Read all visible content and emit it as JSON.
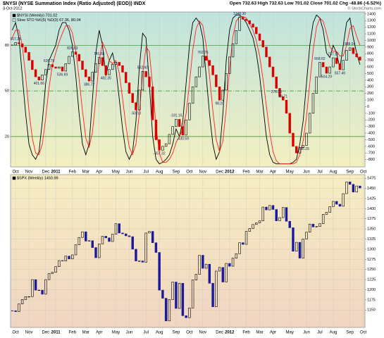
{
  "header": {
    "title": "$NYSI (NYSE Summation Index (Ratio Adjusted) (EOD)) INDX",
    "date": "3-Oct-2012",
    "quote": "Open 732.63  High 732.63  Low 701.02  Close 701.02  Chg -48.86 (-6.52%)",
    "credit": "© StockCharts.com"
  },
  "chart_data": [
    {
      "type": "candlestick",
      "legend": [
        "$NYSI (Weekly) 701.02",
        "Slow STO %K(5) %D(3) 67.36, 80.04"
      ],
      "up_color": "#000000",
      "down_color": "#dd0000",
      "values": [
        930,
        967.28,
        950,
        900,
        820,
        700,
        560,
        450,
        401.66,
        480,
        560,
        635.79,
        600,
        580,
        600,
        536.69,
        650,
        760,
        826.83,
        790,
        690,
        560,
        450,
        386.72,
        520,
        650,
        741.56,
        620,
        482.35,
        560,
        640,
        670,
        620,
        520,
        360,
        200,
        60,
        -50.1,
        250,
        532.6,
        450,
        300,
        -200,
        -500,
        -657.32,
        -600,
        -560,
        -420,
        -300,
        -191.15,
        -300,
        -430.59,
        -200,
        50,
        300,
        450,
        600,
        762.76,
        700,
        620,
        480,
        300,
        98.2,
        250,
        500,
        750,
        950,
        1150,
        1348.3,
        1320,
        1300,
        1250,
        1200,
        1100,
        1000,
        900,
        750,
        600,
        450,
        276.2,
        150,
        98.71,
        -100,
        -400,
        -600,
        -700,
        -620,
        -586.29,
        -400,
        -100,
        200,
        450,
        668.62,
        600,
        504.29,
        600,
        737.17,
        650,
        557.49,
        700,
        850,
        888.54,
        800,
        750,
        701.02
      ],
      "value_labels": [
        null,
        "967.28",
        null,
        null,
        null,
        null,
        null,
        null,
        "401.66",
        null,
        null,
        "635.79",
        null,
        null,
        null,
        "536.69",
        null,
        null,
        "826.83",
        null,
        null,
        null,
        null,
        "386.72",
        null,
        null,
        "741.56",
        null,
        "482.35",
        null,
        null,
        null,
        null,
        null,
        null,
        null,
        null,
        "-50.10",
        null,
        "532.60",
        null,
        null,
        null,
        null,
        "-657.32",
        null,
        null,
        null,
        null,
        "-191.15",
        null,
        "-430.59",
        null,
        null,
        null,
        null,
        null,
        "762.76",
        null,
        null,
        null,
        null,
        "98.20",
        null,
        null,
        null,
        null,
        null,
        "1348.30",
        null,
        null,
        null,
        null,
        null,
        null,
        null,
        null,
        null,
        null,
        "276.20",
        null,
        "98.71",
        null,
        null,
        null,
        null,
        null,
        "-586.29",
        null,
        null,
        null,
        null,
        "668.62",
        null,
        "504.29",
        null,
        "737.17",
        null,
        "557.49",
        null,
        null,
        "888.54",
        null,
        null,
        null
      ],
      "series": [
        {
          "color": "#000000",
          "axis": "y2",
          "values": [
            90,
            95,
            85,
            60,
            35,
            15,
            8,
            5,
            10,
            30,
            55,
            70,
            75,
            80,
            90,
            95,
            95,
            90,
            80,
            60,
            35,
            15,
            8,
            15,
            45,
            75,
            90,
            80,
            60,
            70,
            75,
            65,
            45,
            25,
            10,
            5,
            10,
            30,
            65,
            88,
            85,
            55,
            20,
            5,
            2,
            3,
            5,
            8,
            15,
            25,
            20,
            30,
            55,
            80,
            95,
            98,
            95,
            85,
            60,
            35,
            15,
            5,
            10,
            35,
            70,
            90,
            98,
            100,
            100,
            98,
            95,
            90,
            85,
            75,
            60,
            40,
            20,
            8,
            3,
            2,
            2,
            2,
            2,
            2,
            3,
            5,
            15,
            30,
            55,
            80,
            95,
            100,
            98,
            90,
            75,
            72,
            80,
            75,
            65,
            80,
            95,
            98,
            85,
            75,
            67.36
          ]
        },
        {
          "color": "#ff2020",
          "axis": "y2",
          "values": [
            85,
            90,
            90,
            80,
            60,
            37,
            19,
            9,
            8,
            15,
            32,
            52,
            67,
            75,
            82,
            88,
            93,
            93,
            88,
            77,
            58,
            37,
            19,
            13,
            23,
            45,
            70,
            82,
            77,
            70,
            68,
            70,
            62,
            45,
            27,
            13,
            8,
            15,
            35,
            61,
            79,
            76,
            53,
            27,
            9,
            3,
            3,
            5,
            9,
            16,
            20,
            25,
            35,
            55,
            77,
            91,
            96,
            93,
            80,
            60,
            37,
            18,
            10,
            17,
            38,
            65,
            86,
            96,
            99,
            99,
            98,
            94,
            90,
            83,
            73,
            58,
            40,
            23,
            10,
            4,
            2,
            2,
            2,
            2,
            2,
            3,
            8,
            17,
            33,
            55,
            77,
            92,
            98,
            96,
            88,
            79,
            76,
            76,
            73,
            73,
            80,
            91,
            93,
            86,
            80.04
          ]
        }
      ],
      "xlim": [
        -0.5,
        105.5
      ],
      "xticks": [
        {
          "value": 1,
          "label": "Oct"
        },
        {
          "value": 5,
          "label": "Nov"
        },
        {
          "value": 10,
          "label": "Dec"
        },
        {
          "value": 13,
          "label": "2011"
        },
        {
          "value": 18,
          "label": "Feb"
        },
        {
          "value": 22,
          "label": "Mar"
        },
        {
          "value": 26,
          "label": "Apr"
        },
        {
          "value": 31,
          "label": "May"
        },
        {
          "value": 35,
          "label": "Jun"
        },
        {
          "value": 40,
          "label": "Jul"
        },
        {
          "value": 44,
          "label": "Aug"
        },
        {
          "value": 49,
          "label": "Sep"
        },
        {
          "value": 53,
          "label": "Oct"
        },
        {
          "value": 57,
          "label": "Nov"
        },
        {
          "value": 62,
          "label": "Dec"
        },
        {
          "value": 65,
          "label": "2012"
        },
        {
          "value": 70,
          "label": "Feb"
        },
        {
          "value": 74,
          "label": "Mar"
        },
        {
          "value": 78,
          "label": "Apr"
        },
        {
          "value": 83,
          "label": "May"
        },
        {
          "value": 88,
          "label": "Jun"
        },
        {
          "value": 92,
          "label": "Jul"
        },
        {
          "value": 96,
          "label": "Aug"
        },
        {
          "value": 101,
          "label": "Sep"
        },
        {
          "value": 105,
          "label": "Oct"
        }
      ],
      "ylim": [
        -910,
        1430
      ],
      "yticks": [
        1400,
        1300,
        1200,
        1100,
        1000,
        900,
        800,
        700,
        600,
        500,
        400,
        300,
        200,
        100,
        0,
        -100,
        -200,
        -300,
        -400,
        -500,
        -600,
        -700,
        -800
      ],
      "y2lim": [
        0,
        102
      ],
      "y2ticks": [
        20,
        50,
        80
      ],
      "grid": false,
      "background": [
        "#bfe4dd",
        "#f3efc0"
      ]
    },
    {
      "type": "candlestick",
      "legend": [
        "$SPX (Weekly) 1450.99"
      ],
      "up_color": "#000000",
      "down_color": "#1a1a9a",
      "values": [
        1148,
        1146,
        1165,
        1176,
        1183,
        1183,
        1225,
        1199,
        1199,
        1189,
        1225,
        1240,
        1243,
        1257,
        1272,
        1271,
        1283,
        1276,
        1286,
        1311,
        1329,
        1343,
        1320,
        1321,
        1304,
        1279,
        1313,
        1332,
        1328,
        1319,
        1337,
        1363,
        1340,
        1338,
        1333,
        1331,
        1300,
        1271,
        1271,
        1268,
        1340,
        1344,
        1316,
        1292,
        1199,
        1179,
        1123,
        1176,
        1219,
        1154,
        1216,
        1136,
        1131,
        1155,
        1224,
        1238,
        1285,
        1253,
        1263,
        1216,
        1158,
        1246,
        1255,
        1219,
        1265,
        1258,
        1278,
        1289,
        1316,
        1312,
        1344,
        1351,
        1361,
        1365,
        1370,
        1404,
        1397,
        1408,
        1398,
        1370,
        1378,
        1403,
        1369,
        1353,
        1295,
        1317,
        1278,
        1325,
        1342,
        1362,
        1355,
        1356,
        1363,
        1386,
        1391,
        1405,
        1418,
        1411,
        1406,
        1437,
        1466,
        1460,
        1441,
        1456,
        1450.99
      ],
      "xlim": [
        -0.5,
        105.5
      ],
      "xticks": [
        {
          "value": 1,
          "label": "Oct"
        },
        {
          "value": 5,
          "label": "Nov"
        },
        {
          "value": 10,
          "label": "Dec"
        },
        {
          "value": 13,
          "label": "2011"
        },
        {
          "value": 18,
          "label": "Feb"
        },
        {
          "value": 22,
          "label": "Mar"
        },
        {
          "value": 26,
          "label": "Apr"
        },
        {
          "value": 31,
          "label": "May"
        },
        {
          "value": 35,
          "label": "Jun"
        },
        {
          "value": 40,
          "label": "Jul"
        },
        {
          "value": 44,
          "label": "Aug"
        },
        {
          "value": 49,
          "label": "Sep"
        },
        {
          "value": 53,
          "label": "Oct"
        },
        {
          "value": 57,
          "label": "Nov"
        },
        {
          "value": 62,
          "label": "Dec"
        },
        {
          "value": 65,
          "label": "2012"
        },
        {
          "value": 70,
          "label": "Feb"
        },
        {
          "value": 74,
          "label": "Mar"
        },
        {
          "value": 78,
          "label": "Apr"
        },
        {
          "value": 83,
          "label": "May"
        },
        {
          "value": 88,
          "label": "Jun"
        },
        {
          "value": 92,
          "label": "Jul"
        },
        {
          "value": 96,
          "label": "Aug"
        },
        {
          "value": 101,
          "label": "Sep"
        },
        {
          "value": 105,
          "label": "Oct"
        }
      ],
      "ylim": [
        1107,
        1484
      ],
      "yticks": [
        1475,
        1450,
        1425,
        1400,
        1375,
        1350,
        1325,
        1300,
        1275,
        1250,
        1225,
        1200,
        1175,
        1150
      ],
      "grid": true,
      "background": [
        "#f6edc2",
        "#f1d5c2"
      ]
    }
  ]
}
